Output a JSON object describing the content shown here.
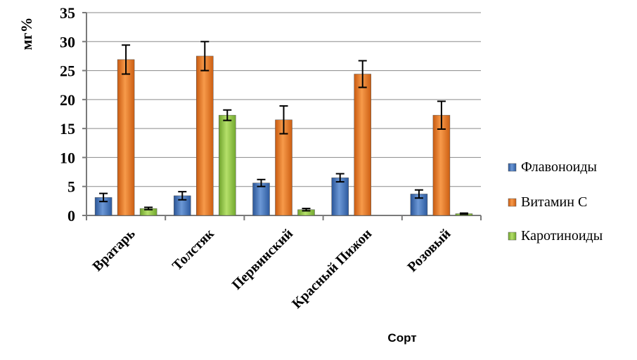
{
  "chart_data": {
    "type": "bar",
    "ylabel": "мг%",
    "xlabel": "Сорт",
    "ylim": [
      0,
      35
    ],
    "yticks": [
      0,
      5,
      10,
      15,
      20,
      25,
      30,
      35
    ],
    "grid": true,
    "legend_position": "right",
    "categories": [
      "Вратарь",
      "Толстяк",
      "Первинский",
      "Красный Пижон",
      "Розовый"
    ],
    "series": [
      {
        "name": "Флавоноиды",
        "color": "#3e6fb5",
        "values": [
          3.1,
          3.4,
          5.6,
          6.5,
          3.7
        ],
        "errors": [
          0.7,
          0.7,
          0.6,
          0.7,
          0.7
        ]
      },
      {
        "name": "Витамин С",
        "color": "#e8731f",
        "values": [
          26.9,
          27.5,
          16.5,
          24.4,
          17.3
        ],
        "errors": [
          2.5,
          2.5,
          2.4,
          2.3,
          2.4
        ]
      },
      {
        "name": "Каротиноиды",
        "color": "#8cc63e",
        "values": [
          1.2,
          17.3,
          1.0,
          0,
          0.3
        ],
        "errors": [
          0.2,
          0.9,
          0.2,
          0,
          0.1
        ]
      }
    ]
  }
}
